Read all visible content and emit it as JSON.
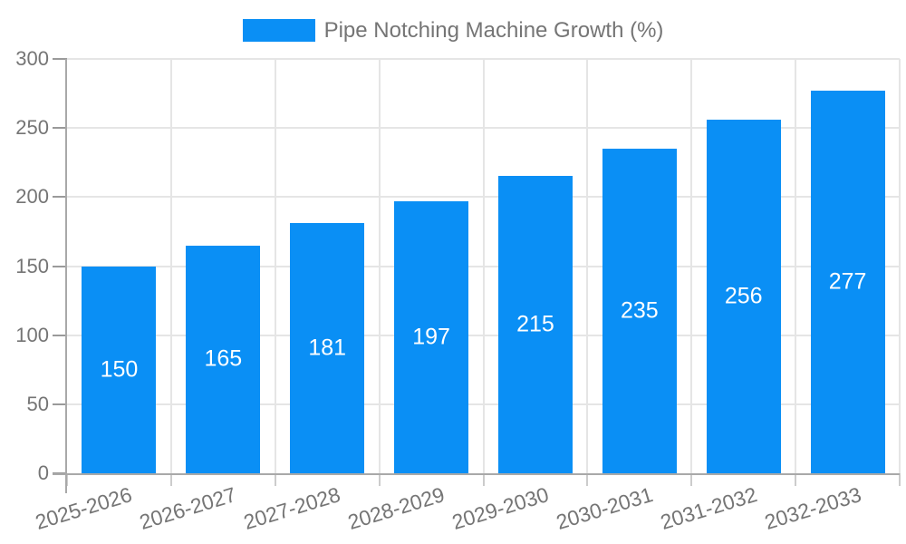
{
  "chart_data": {
    "type": "bar",
    "title": "",
    "legend_label": "Pipe Notching Machine Growth (%)",
    "legend_position": "top-center",
    "categories": [
      "2025-2026",
      "2026-2027",
      "2027-2028",
      "2028-2029",
      "2029-2030",
      "2030-2031",
      "2031-2032",
      "2032-2033"
    ],
    "series": [
      {
        "name": "Pipe Notching Machine Growth (%)",
        "values": [
          150,
          165,
          181,
          197,
          215,
          235,
          256,
          277
        ]
      }
    ],
    "value_labels_shown": true,
    "xlabel": "",
    "ylabel": "",
    "ylim": [
      0,
      300
    ],
    "yticks": [
      0,
      50,
      100,
      150,
      200,
      250,
      300
    ],
    "grid": true,
    "x_label_rotation_deg": -17,
    "colors": {
      "bar": "#0A8FF5",
      "value_label": "#FFFFFF",
      "axis_text": "#757575",
      "legend_text": "#757575",
      "grid_line": "#E5E5E5",
      "axis_line": "#A9A9A9",
      "y_tick": "#9A9A9A",
      "x_tick": "#CCCCCC",
      "background": "#FFFFFF"
    }
  }
}
